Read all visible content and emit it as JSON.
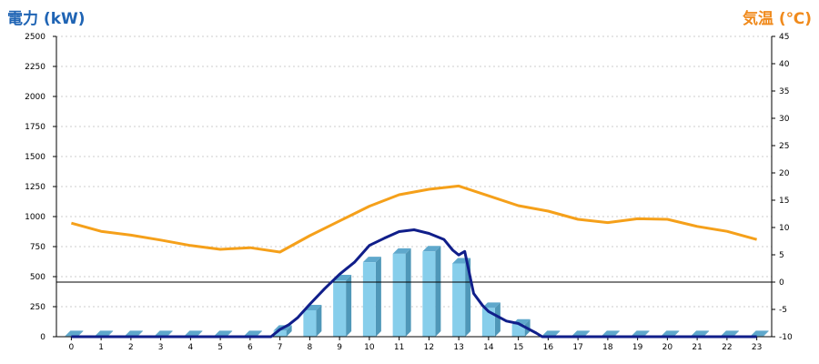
{
  "header": {
    "left_title": "電力 (kW)",
    "right_title": "気温 (℃)"
  },
  "colors": {
    "bar_face": "#87ceeb",
    "bar_side": "#4f97b8",
    "bar_top": "#5fa8cc",
    "power_line": "#101e8a",
    "temp_line": "#f5a01a",
    "grid": "#cccccc",
    "axis": "#000000",
    "tick_text": "#000000",
    "left_title": "#1f64b4",
    "right_title": "#f08a1c"
  },
  "chart_data": {
    "type": "bar",
    "categories": [
      "0",
      "1",
      "2",
      "3",
      "4",
      "5",
      "6",
      "7",
      "8",
      "9",
      "10",
      "11",
      "12",
      "13",
      "14",
      "15",
      "16",
      "17",
      "18",
      "19",
      "20",
      "21",
      "22",
      "23"
    ],
    "left_axis": {
      "label": "電力 (kW)",
      "ylim": [
        0,
        2500
      ],
      "ticks": [
        0,
        250,
        500,
        750,
        1000,
        1250,
        1500,
        1750,
        2000,
        2250,
        2500
      ]
    },
    "right_axis": {
      "label": "気温 (℃)",
      "ylim": [
        -10,
        45
      ],
      "ticks": [
        -10,
        -5,
        0,
        5,
        10,
        15,
        20,
        25,
        30,
        35,
        40,
        45
      ]
    },
    "grid": true,
    "series": [
      {
        "kind": "bar",
        "axis": "left",
        "values": [
          5,
          5,
          5,
          5,
          5,
          5,
          5,
          50,
          220,
          470,
          620,
          690,
          710,
          610,
          240,
          100,
          5,
          5,
          5,
          5,
          5,
          5,
          5,
          5
        ]
      },
      {
        "kind": "line",
        "axis": "left",
        "points": [
          [
            0,
            0
          ],
          [
            1,
            0
          ],
          [
            2,
            0
          ],
          [
            3,
            0
          ],
          [
            4,
            0
          ],
          [
            5,
            0
          ],
          [
            6,
            0
          ],
          [
            6.7,
            0
          ],
          [
            7,
            60
          ],
          [
            7.3,
            100
          ],
          [
            7.6,
            160
          ],
          [
            8,
            270
          ],
          [
            8.5,
            400
          ],
          [
            9,
            520
          ],
          [
            9.5,
            620
          ],
          [
            10,
            760
          ],
          [
            10.5,
            820
          ],
          [
            11,
            875
          ],
          [
            11.5,
            890
          ],
          [
            12,
            860
          ],
          [
            12.5,
            810
          ],
          [
            12.8,
            720
          ],
          [
            13,
            680
          ],
          [
            13.2,
            710
          ],
          [
            13.5,
            360
          ],
          [
            13.8,
            260
          ],
          [
            14,
            210
          ],
          [
            14.3,
            170
          ],
          [
            14.6,
            130
          ],
          [
            15,
            110
          ],
          [
            15.3,
            70
          ],
          [
            15.6,
            30
          ],
          [
            15.8,
            0
          ],
          [
            16,
            0
          ],
          [
            17,
            0
          ],
          [
            18,
            0
          ],
          [
            19,
            0
          ],
          [
            20,
            0
          ],
          [
            21,
            0
          ],
          [
            22,
            0
          ],
          [
            23,
            0
          ]
        ]
      },
      {
        "kind": "line",
        "axis": "right",
        "values": [
          10.8,
          9.3,
          8.6,
          7.7,
          6.7,
          6.0,
          6.3,
          5.5,
          8.5,
          11.2,
          13.9,
          16.0,
          17.0,
          17.6,
          15.8,
          14.0,
          13.0,
          11.5,
          10.9,
          11.6,
          11.5,
          10.2,
          9.3,
          7.8
        ]
      }
    ],
    "reference_line": {
      "axis": "right",
      "value": 0
    }
  }
}
